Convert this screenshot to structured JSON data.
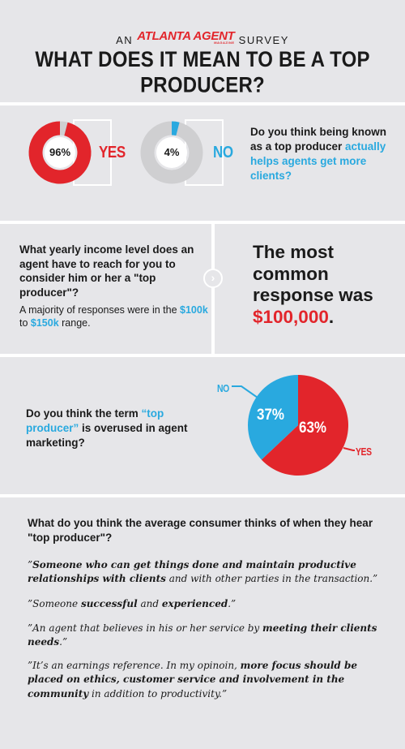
{
  "header": {
    "kicker_prefix": "AN",
    "brand": "ATLANTA AGENT",
    "brand_sub": "MAGAZINE",
    "kicker_suffix": "SURVEY",
    "title": "WHAT DOES IT MEAN TO BE A TOP PRODUCER?"
  },
  "q1": {
    "question_parts": [
      "Do you think being known as a top producer ",
      "actually helps agents get more clients?"
    ],
    "yes": {
      "pct": "96%",
      "label": "YES",
      "value": 96
    },
    "no": {
      "pct": "4%",
      "label": "NO",
      "value": 4
    }
  },
  "q2": {
    "question": "What yearly income level does an agent have to reach for you to consider him or her a \"top producer\"?",
    "note_parts": [
      "A majority of responses were in the ",
      "$100k",
      " to ",
      "$150k",
      " range."
    ],
    "arrow": "›",
    "answer_parts": [
      "The most common response was ",
      "$100,000",
      "."
    ]
  },
  "q3": {
    "question_parts": [
      "Do you think the term ",
      "“top producer”",
      " is overused in agent marketing?"
    ],
    "chart_data": {
      "type": "pie",
      "categories": [
        "YES",
        "NO"
      ],
      "values": [
        63,
        37
      ],
      "colors": [
        "#e2252b",
        "#29a9df"
      ],
      "labels": [
        "63%",
        "37%"
      ]
    }
  },
  "q4": {
    "question": "What do you think the average consumer thinks of when they hear \"top producer\"?",
    "quotes": [
      [
        "”",
        "Someone who can get things done and maintain productive relationships with clients",
        " and with other parties in the transaction.”"
      ],
      [
        "”Someone ",
        "successful",
        " and ",
        "experienced",
        ".”"
      ],
      [
        "”An agent that believes in his or her service by ",
        "meeting their clients needs",
        ".”"
      ],
      [
        "”It’s an earnings reference. In my opinoin, ",
        "more focus should be placed on ethics, customer service and involvement in the community",
        " in addition to productivity.”"
      ]
    ]
  },
  "colors": {
    "red": "#e2252b",
    "blue": "#29a9df",
    "grey_ring": "#cfcfd1",
    "background": "#e6e6e9"
  }
}
